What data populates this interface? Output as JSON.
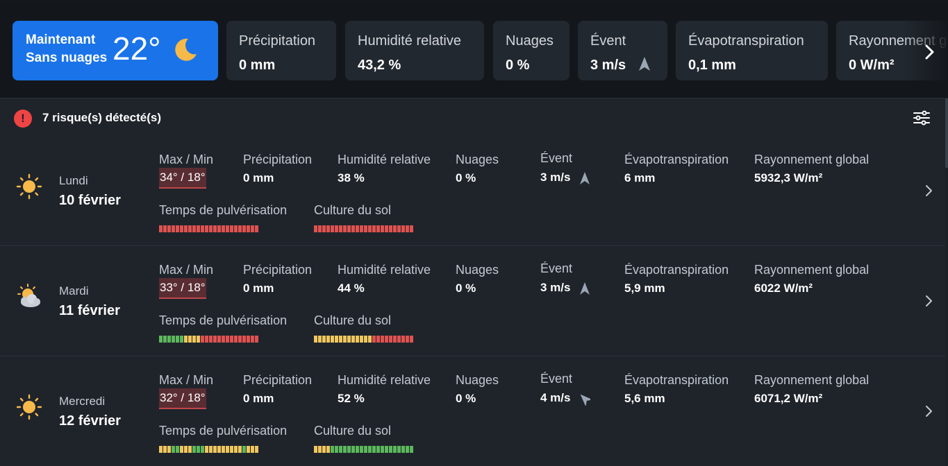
{
  "now": {
    "label": "Maintenant",
    "condition": "Sans nuages",
    "temperature": "22°",
    "icon": "moon-icon"
  },
  "metrics": [
    {
      "label": "Précipitation",
      "value": "0 mm"
    },
    {
      "label": "Humidité relative",
      "value": "43,2 %"
    },
    {
      "label": "Nuages",
      "value": "0 %"
    },
    {
      "label": "Évent",
      "value": "3 m/s",
      "icon": "wind-direction-arrow-icon"
    },
    {
      "label": "Évapotranspiration",
      "value": "0,1 mm"
    },
    {
      "label": "Rayonnement global",
      "value": "0 W/m²"
    }
  ],
  "risk": {
    "text": "7 risque(s) détecté(s)",
    "icon": "alert-icon",
    "filter_icon": "filter-sliders-icon"
  },
  "column_labels": {
    "maxmin": "Max / Min",
    "precip": "Précipitation",
    "humidity": "Humidité relative",
    "clouds": "Nuages",
    "wind": "Évent",
    "evapo": "Évapotranspiration",
    "radiation": "Rayonnement global",
    "spray": "Temps de pulvérisation",
    "soil": "Culture du sol"
  },
  "days": [
    {
      "day": "Lundi",
      "date": "10 février",
      "icon": "sun-icon",
      "maxmin": "34° / 18°",
      "precip": "0 mm",
      "humidity": "38 %",
      "clouds": "0 %",
      "wind": "3 m/s",
      "evapo": "6 mm",
      "radiation": "5932,3 W/m²",
      "spray": [
        "r",
        "r",
        "r",
        "r",
        "r",
        "r",
        "r",
        "r",
        "r",
        "r",
        "r",
        "r",
        "r",
        "r",
        "r",
        "r",
        "r",
        "r",
        "r",
        "r",
        "r",
        "r",
        "r",
        "r"
      ],
      "soil": [
        "r",
        "r",
        "r",
        "r",
        "r",
        "r",
        "r",
        "r",
        "r",
        "r",
        "r",
        "r",
        "r",
        "r",
        "r",
        "r",
        "r",
        "r",
        "r",
        "r",
        "r",
        "r",
        "r",
        "r"
      ]
    },
    {
      "day": "Mardi",
      "date": "11 février",
      "icon": "partly-cloudy-icon",
      "maxmin": "33° / 18°",
      "precip": "0 mm",
      "humidity": "44 %",
      "clouds": "0 %",
      "wind": "3 m/s",
      "evapo": "5,9 mm",
      "radiation": "6022 W/m²",
      "spray": [
        "g",
        "g",
        "g",
        "g",
        "g",
        "g",
        "y",
        "y",
        "y",
        "y",
        "r",
        "r",
        "r",
        "r",
        "r",
        "r",
        "r",
        "r",
        "r",
        "r",
        "r",
        "r",
        "r",
        "r"
      ],
      "soil": [
        "y",
        "y",
        "y",
        "y",
        "y",
        "y",
        "y",
        "y",
        "y",
        "y",
        "y",
        "y",
        "y",
        "y",
        "r",
        "r",
        "r",
        "r",
        "r",
        "r",
        "r",
        "r",
        "r",
        "r"
      ]
    },
    {
      "day": "Mercredi",
      "date": "12 février",
      "icon": "sun-icon",
      "maxmin": "32° / 18°",
      "precip": "0 mm",
      "humidity": "52 %",
      "clouds": "0 %",
      "wind": "4 m/s",
      "evapo": "5,6 mm",
      "radiation": "6071,2 W/m²",
      "spray": [
        "y",
        "y",
        "y",
        "g",
        "g",
        "y",
        "y",
        "y",
        "g",
        "g",
        "g",
        "y",
        "y",
        "y",
        "y",
        "y",
        "y",
        "y",
        "y",
        "y",
        "g",
        "y",
        "y",
        "y"
      ],
      "soil": [
        "y",
        "y",
        "y",
        "y",
        "g",
        "g",
        "g",
        "g",
        "g",
        "g",
        "g",
        "g",
        "g",
        "g",
        "g",
        "g",
        "g",
        "g",
        "g",
        "g",
        "g",
        "g",
        "g",
        "g"
      ]
    }
  ],
  "colors": {
    "r": "#e0524f",
    "g": "#5cb85c",
    "y": "#f0c75e",
    "accent": "#1a73e8"
  }
}
